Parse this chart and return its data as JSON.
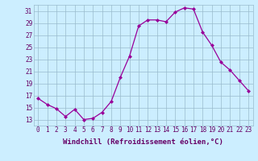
{
  "x": [
    0,
    1,
    2,
    3,
    4,
    5,
    6,
    7,
    8,
    9,
    10,
    11,
    12,
    13,
    14,
    15,
    16,
    17,
    18,
    19,
    20,
    21,
    22,
    23
  ],
  "y": [
    16.5,
    15.5,
    14.8,
    13.5,
    14.7,
    13.0,
    13.2,
    14.2,
    16.0,
    20.0,
    23.5,
    28.5,
    29.5,
    29.5,
    29.2,
    30.8,
    31.5,
    31.3,
    27.5,
    25.3,
    22.5,
    21.2,
    19.5,
    17.8
  ],
  "line_color": "#990099",
  "marker": "D",
  "marker_size": 2.0,
  "bg_color": "#cceeff",
  "grid_color": "#99bbcc",
  "xlabel": "Windchill (Refroidissement éolien,°C)",
  "ylim": [
    12,
    32
  ],
  "xlim": [
    -0.5,
    23.5
  ],
  "yticks": [
    13,
    15,
    17,
    19,
    21,
    23,
    25,
    27,
    29,
    31
  ],
  "xticks": [
    0,
    1,
    2,
    3,
    4,
    5,
    6,
    7,
    8,
    9,
    10,
    11,
    12,
    13,
    14,
    15,
    16,
    17,
    18,
    19,
    20,
    21,
    22,
    23
  ],
  "label_color": "#660066",
  "tick_color": "#660066",
  "tick_fontsize": 5.5,
  "xlabel_fontsize": 6.5
}
